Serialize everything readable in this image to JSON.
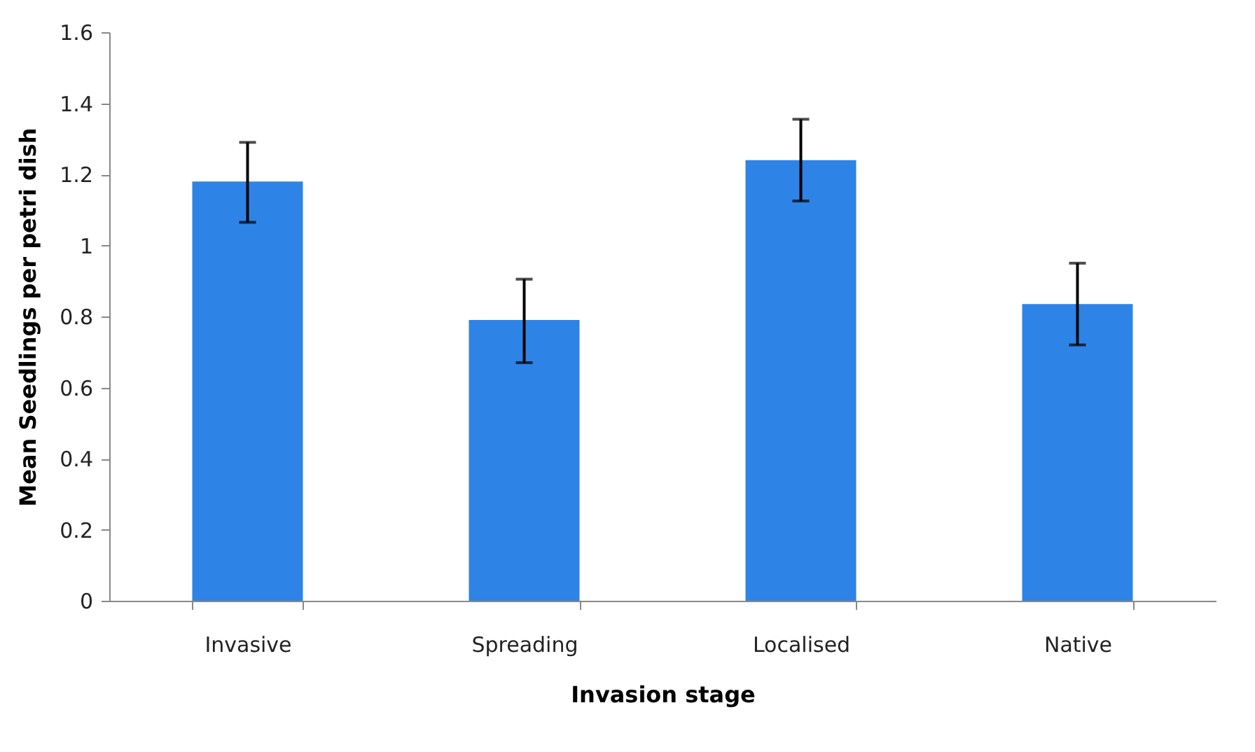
{
  "chart_data": {
    "type": "bar",
    "xlabel": "Invasion stage",
    "ylabel": "Mean Seedlings per petri dish",
    "categories": [
      "Invasive",
      "Spreading",
      "Localised",
      "Native"
    ],
    "values": [
      1.18,
      0.79,
      1.24,
      0.835
    ],
    "errors": [
      [
        1.065,
        1.29
      ],
      [
        0.67,
        0.905
      ],
      [
        1.125,
        1.355
      ],
      [
        0.72,
        0.95
      ]
    ],
    "color": "#2e83e6",
    "ylim": [
      0,
      1.6
    ],
    "yticks": [
      0,
      0.2,
      0.4,
      0.6,
      0.8,
      1,
      1.2,
      1.4,
      1.6
    ],
    "grid": false
  }
}
